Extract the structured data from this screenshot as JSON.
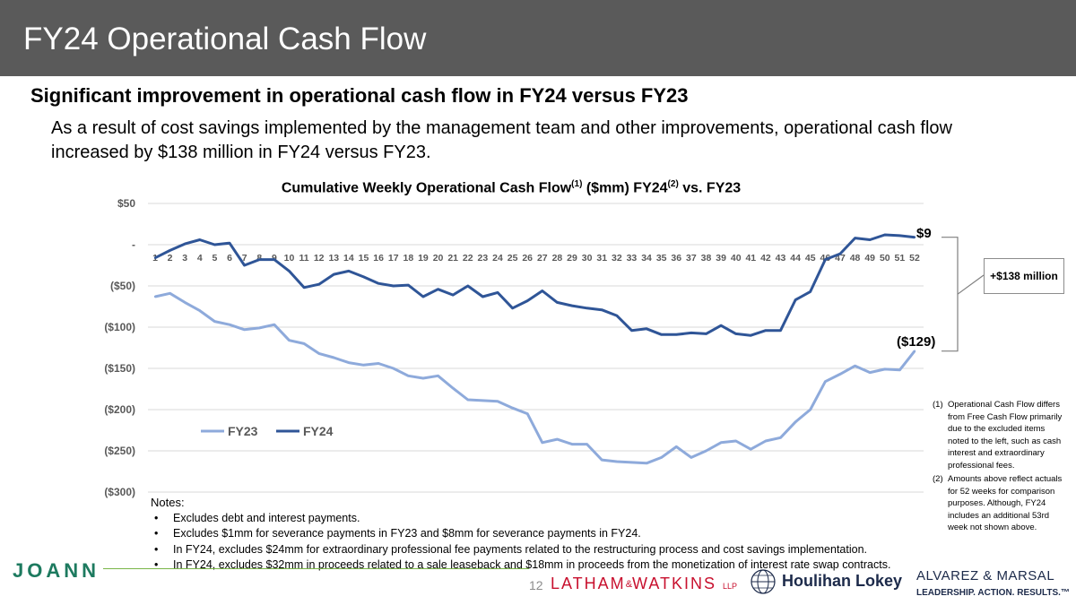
{
  "header": {
    "title": "FY24 Operational Cash Flow"
  },
  "subheading": "Significant improvement in operational cash flow in FY24 versus FY23",
  "body_text": "As a result of cost savings implemented by the management team and other improvements, operational cash flow increased by $138 million in FY24 versus FY23.",
  "chart_title": {
    "main": "Cumulative Weekly Operational Cash Flow",
    "sup1": "(1)",
    "mid": " ($mm) FY24",
    "sup2": "(2)",
    "tail": " vs. FY23"
  },
  "callout": {
    "difference": "+$138 million",
    "fy24_end": "$9",
    "fy23_end": "($129)"
  },
  "notes": {
    "heading": "Notes:",
    "items": [
      "Excludes debt and interest payments.",
      "Excludes $1mm for severance payments in FY23 and $8mm for severance payments in FY24.",
      "In FY24, excludes $24mm for extraordinary professional fee payments related to the restructuring process and cost savings implementation.",
      "In FY24, excludes $32mm in proceeds related to a sale leaseback and $18mm in proceeds from the monetization of interest rate swap contracts."
    ]
  },
  "footnotes": [
    {
      "num": "(1)",
      "text": "Operational Cash Flow differs from Free Cash Flow primarily due to the excluded items noted to the left, such as cash interest and extraordinary professional fees."
    },
    {
      "num": "(2)",
      "text": "Amounts above reflect actuals for 52 weeks for comparison purposes. Although, FY24 includes an additional 53rd week not shown above."
    }
  ],
  "footer": {
    "joann": "JOANN",
    "page_number": "12",
    "latham": "LATHAM",
    "latham_amp": "&",
    "watkins": "WATKINS",
    "latham_llp": "LLP",
    "houlihan": "Houlihan Lokey",
    "alvarez": "ALVAREZ & MARSAL",
    "alvarez_tagline": "LEADERSHIP. ACTION. RESULTS.™"
  },
  "chart_data": {
    "type": "line",
    "title": "Cumulative Weekly Operational Cash Flow(1) ($mm) FY24(2) vs. FY23",
    "xlabel": "",
    "ylabel": "",
    "x": [
      1,
      2,
      3,
      4,
      5,
      6,
      7,
      8,
      9,
      10,
      11,
      12,
      13,
      14,
      15,
      16,
      17,
      18,
      19,
      20,
      21,
      22,
      23,
      24,
      25,
      26,
      27,
      28,
      29,
      30,
      31,
      32,
      33,
      34,
      35,
      36,
      37,
      38,
      39,
      40,
      41,
      42,
      43,
      44,
      45,
      46,
      47,
      48,
      49,
      50,
      51,
      52
    ],
    "ylim": [
      -300,
      50
    ],
    "yticks": [
      50,
      0,
      -50,
      -100,
      -150,
      -200,
      -250,
      -300
    ],
    "ytick_labels": [
      "$50",
      "-",
      "($50)",
      "($100)",
      "($150)",
      "($200)",
      "($250)",
      "($300)"
    ],
    "legend_position": "lower-left",
    "series": [
      {
        "name": "FY23",
        "color": "#8eaadb",
        "values": [
          -63,
          -59,
          -70,
          -80,
          -93,
          -97,
          -103,
          -101,
          -97,
          -116,
          -120,
          -132,
          -137,
          -143,
          -146,
          -144,
          -150,
          -159,
          -162,
          -159,
          -174,
          -188,
          -189,
          -190,
          -198,
          -205,
          -240,
          -236,
          -242,
          -242,
          -261,
          -263,
          -264,
          -265,
          -258,
          -245,
          -258,
          -250,
          -240,
          -238,
          -248,
          -238,
          -234,
          -215,
          -200,
          -166,
          -157,
          -147,
          -155,
          -151,
          -152,
          -129
        ]
      },
      {
        "name": "FY24",
        "color": "#2f5597",
        "values": [
          -16,
          -7,
          1,
          6,
          0,
          2,
          -25,
          -18,
          -18,
          -32,
          -52,
          -48,
          -36,
          -32,
          -39,
          -47,
          -50,
          -49,
          -63,
          -54,
          -61,
          -50,
          -63,
          -58,
          -77,
          -68,
          -56,
          -70,
          -74,
          -77,
          -79,
          -86,
          -104,
          -102,
          -109,
          -109,
          -107,
          -108,
          -98,
          -108,
          -110,
          -104,
          -104,
          -67,
          -57,
          -18,
          -11,
          8,
          6,
          12,
          11,
          9
        ]
      }
    ]
  }
}
